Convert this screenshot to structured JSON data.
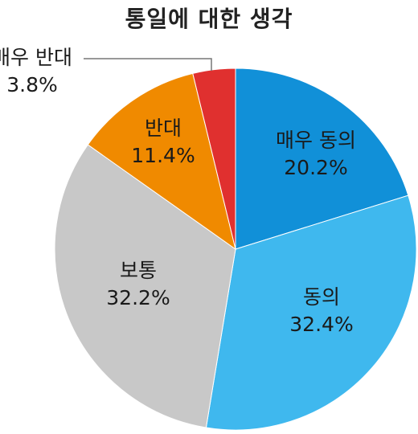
{
  "chart_data": {
    "type": "pie",
    "title": "통일에 대한 생각",
    "slices": [
      {
        "label": "매우 동의",
        "value": 20.2,
        "value_text": "20.2%",
        "color": "#1190d8"
      },
      {
        "label": "동의",
        "value": 32.4,
        "value_text": "32.4%",
        "color": "#3fb8ee"
      },
      {
        "label": "보통",
        "value": 32.2,
        "value_text": "32.2%",
        "color": "#c8c8c8"
      },
      {
        "label": "반대",
        "value": 11.4,
        "value_text": "11.4%",
        "color": "#f08a00"
      },
      {
        "label": "매우 반대",
        "value": 3.8,
        "value_text": "3.8%",
        "color": "#e0302f"
      }
    ],
    "start_angle_deg": 0,
    "direction": "clockwise",
    "legend": "none"
  }
}
